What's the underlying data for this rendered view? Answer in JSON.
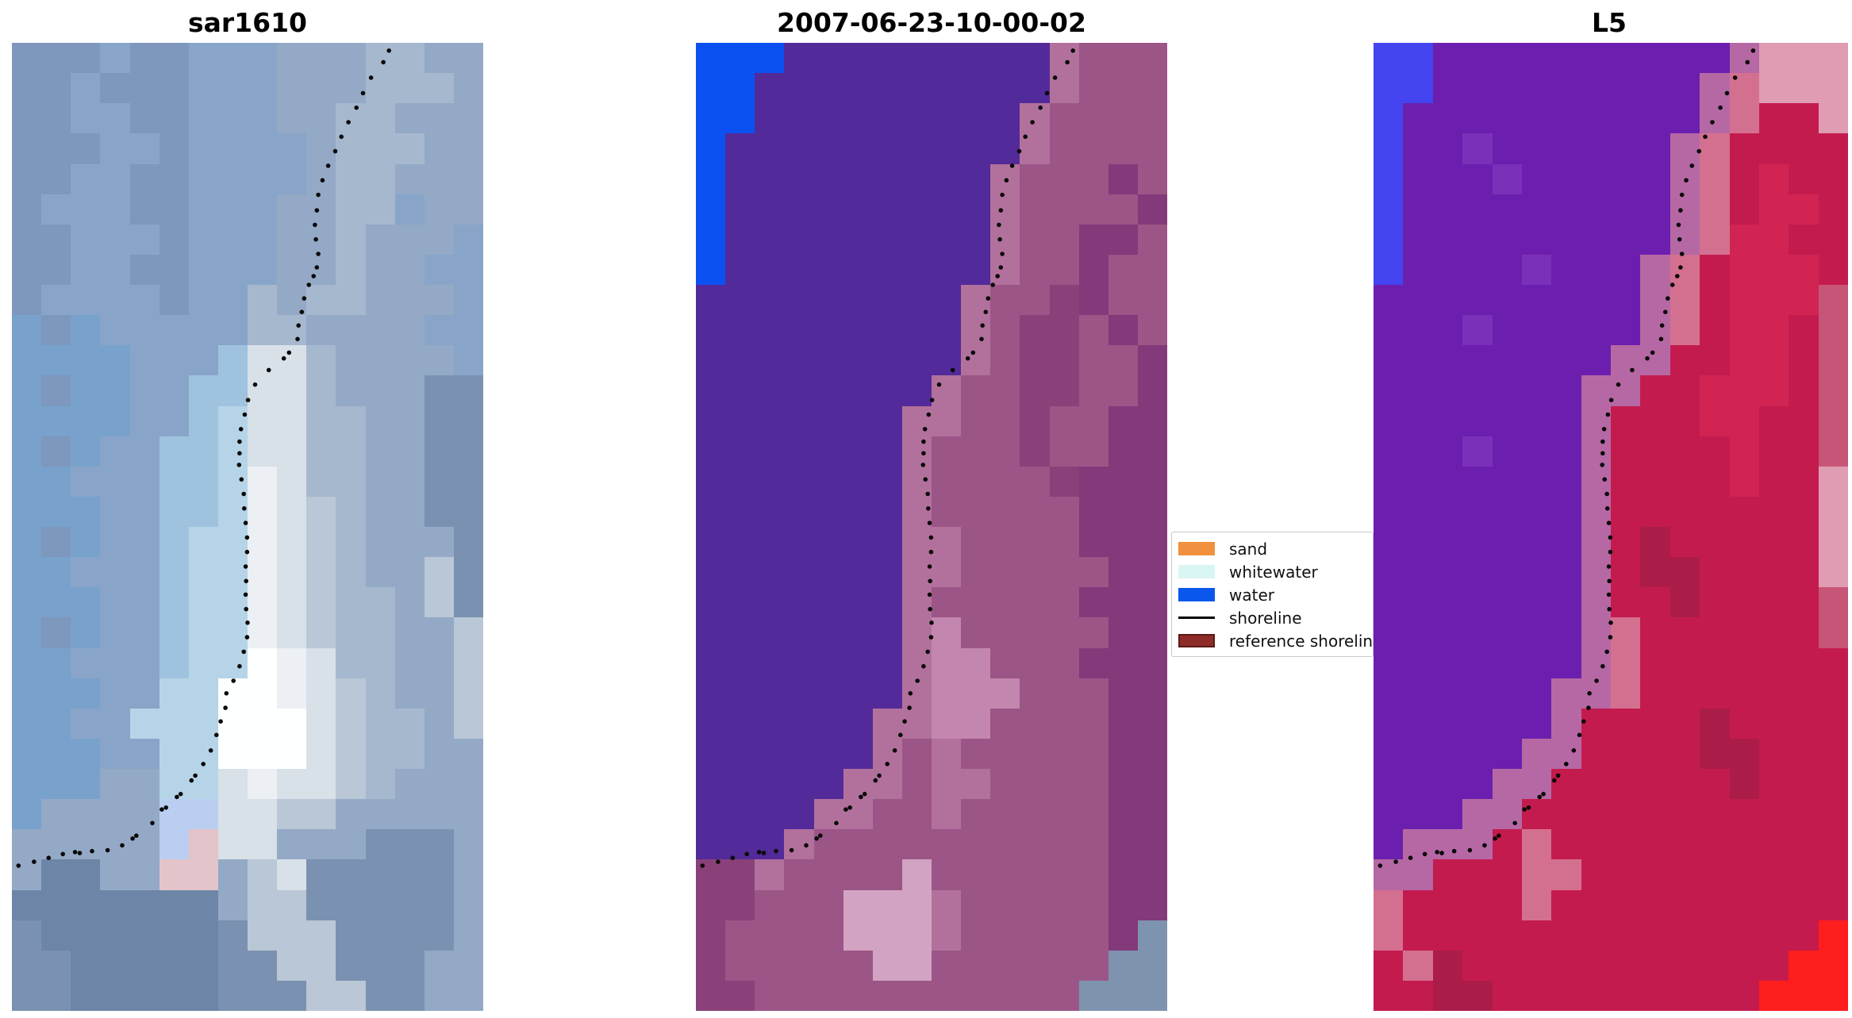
{
  "chart_data": {
    "type": "heatmap",
    "description": "Three-panel coastal satellite figure: SAR image (sar1610), classified scene (2007-06-23-10-00-02) and Landsat 5 (L5), each overlaid with the same dotted detected shoreline; legend box sits between the middle and right panels and is clipped by the right panel.",
    "panel_titles": [
      "sar1610",
      "2007-06-23-10-00-02",
      "L5"
    ],
    "panels": [
      {
        "title": "sar1610",
        "cols": 16,
        "rows": 32,
        "palette": {
          "a": "#7e97bd",
          "b": "#88a5c9",
          "p": "#78a1cb",
          "c": "#93a9c6",
          "d": "#a6b8ce",
          "e": "#b9c7d6",
          "f": "#d8e0e8",
          "g": "#ecf0f4",
          "h": "#feffff",
          "i": "#9fc3df",
          "j": "#b6d4e7",
          "k": "#6d85a6",
          "l": "#7b91b1",
          "m": "#b9cef1",
          "n": "#e3c4ca"
        },
        "grid": [
          "aaabaabbbcccddcc",
          "aabaaabbbcccdddc",
          "aabbaabbbccddccc",
          "aaabbabbbbcdddcc",
          "aabbaabbbbcddccc",
          "abbbaabbbccddbcc",
          "aabbbabbbccdcccb",
          "aabbaabbbccdccbb",
          "abbbbabbdcddcccb",
          "papbbbbbddccccbb",
          "ppppbbbiffdccccb",
          "pappbbiiffdcccll",
          "ppppbbijffddccll",
          "papbbiijffddccll",
          "ppbbbiijgfddccll",
          "pppbbiijgfedccll",
          "papbbijjgfedcccl",
          "ppbbbijjgfedccel",
          "pppbbijjgfeddcel",
          "papbbijjgfeddcce",
          "ppbbbijjhgfddcce",
          "pppbbjjhhgfedcce",
          "ppbbjjjhhhfeddce",
          "pppbbjjhhhfeddcc",
          "pppccjjfgffedccc",
          "pccccmmffeeccccc",
          "cccccmnffccclllc",
          "ckkccnnceflllllc",
          "kkkkkkkceelllllc",
          "lkkkkkkleeellllc",
          "llkkkkklleelllcc",
          "llkkkkkllleellcc"
        ]
      },
      {
        "title": "2007-06-23-10-00-02",
        "cols": 16,
        "rows": 32,
        "palette": {
          "P": "#532a99",
          "B": "#0b51f1",
          "Q": "#b2719c",
          "M": "#9c5587",
          "N": "#8a4079",
          "R": "#83397a",
          "K": "#c386ae",
          "L": "#d2a3c2",
          "S": "#7e93ae"
        },
        "grid": [
          "BBBPPPPPPPPPQMMM",
          "BBPPPPPPPPPPQMMM",
          "BBPPPPPPPPPQMMMM",
          "BPPPPPPPPPPQMMMM",
          "BPPPPPPPPPQMMMRM",
          "BPPPPPPPPPQMMMMR",
          "BPPPPPPPPPQMMRRM",
          "BPPPPPPPPPQMMRMM",
          "PPPPPPPPPQMMNRMM",
          "PPPPPPPPPQMNNMRM",
          "PPPPPPPPPQMNNMMR",
          "PPPPPPPPQMMNNMMR",
          "PPPPPPPQQMMNMMRR",
          "PPPPPPPQMMMNMMRR",
          "PPPPPPPQMMMMNRRR",
          "PPPPPPPQMMMMMRRR",
          "PPPPPPPQQMMMMRRR",
          "PPPPPPPQQMMMMMRR",
          "PPPPPPPQMMMMMRRR",
          "PPPPPPPQKMMMMMRR",
          "PPPPPPPQKKMMMRRR",
          "PPPPPPPQKKKMMMRR",
          "PPPPPPQQKKMMMMRR",
          "PPPPPPQMQMMMMMRR",
          "PPPPPQQMQQMMMMRR",
          "PPPPQQMMQMMMMMRR",
          "PPPQMMMMMMMMMMRR",
          "NNQMMMMLMMMMMMRR",
          "NNMMMLLLQMMMMMRR",
          "NMMMMLLLQMMMMMRS",
          "NMMMMMLLMMMMMMSS",
          "NNMMMMMMMMMMMSSS"
        ]
      },
      {
        "title": "L5",
        "cols": 16,
        "rows": 32,
        "palette": {
          "U": "#4444f0",
          "V": "#6c1fae",
          "T": "#7a30b8",
          "X": "#b668a4",
          "Y": "#c41b4e",
          "Z": "#d12453",
          "v": "#c75577",
          "x": "#d4708f",
          "y": "#df9cb2",
          "z": "#ff1e1e",
          "w": "#ab1c49"
        },
        "grid": [
          "UUVVVVVVVVVVXyyy",
          "UUVVVVVVVVVXxyyy",
          "UVVVVVVVVVVXxYYy",
          "UVVTVVVVVVXxYYYY",
          "UVVVTVVVVVXxYZYY",
          "UVVVVVVVVVXxYZZY",
          "UVVVVVVVVVXxZZYY",
          "UVVVVTVVVXxYZZZY",
          "VVVVVVVVVXxYZZZv",
          "VVVTVVVVVXxYZZYv",
          "VVVVVVVVXXYYZZYv",
          "VVVVVVVXXYYZZZYv",
          "VVVVVVVXYYYZZYYv",
          "VVVTVVVXYYYYZYYv",
          "VVVVVVVXYYYYZYYy",
          "VVVVVVVXYYYYYYYy",
          "VVVVVVVXYwYYYYYy",
          "VVVVVVVXYwwYYYYy",
          "VVVVVVVXYYwYYYYv",
          "VVVVVVVXxYYYYYYv",
          "VVVVVVVXxYYYYYYY",
          "VVVVVVXXxYYYYYYY",
          "VVVVVVXYYYYwYYYY",
          "VVVVVXXYYYYwwYYY",
          "VVVVXXYYYYYYwYYY",
          "VVVXXYYYYYYYYYYY",
          "VXXXYxYYYYYYYYYY",
          "XXYYYxxYYYYYYYYY",
          "xYYYYxYYYYYYYYYY",
          "xYYYYYYYYYYYYYYz",
          "YxwYYYYYYYYYYYzz",
          "YYwwYYYYYYYYYzzz"
        ]
      }
    ],
    "shoreline": {
      "color": "#0a0a0a",
      "marker": "dot",
      "points": [
        [
          0.8,
          0.008
        ],
        [
          0.788,
          0.02
        ],
        [
          0.762,
          0.036
        ],
        [
          0.745,
          0.052
        ],
        [
          0.731,
          0.067
        ],
        [
          0.714,
          0.082
        ],
        [
          0.699,
          0.097
        ],
        [
          0.686,
          0.112
        ],
        [
          0.671,
          0.127
        ],
        [
          0.659,
          0.142
        ],
        [
          0.65,
          0.157
        ],
        [
          0.647,
          0.173
        ],
        [
          0.643,
          0.188
        ],
        [
          0.645,
          0.203
        ],
        [
          0.65,
          0.218
        ],
        [
          0.647,
          0.232
        ],
        [
          0.64,
          0.241
        ],
        [
          0.63,
          0.25
        ],
        [
          0.62,
          0.264
        ],
        [
          0.615,
          0.278
        ],
        [
          0.608,
          0.292
        ],
        [
          0.606,
          0.306
        ],
        [
          0.588,
          0.32
        ],
        [
          0.577,
          0.326
        ],
        [
          0.545,
          0.338
        ],
        [
          0.516,
          0.353
        ],
        [
          0.501,
          0.369
        ],
        [
          0.494,
          0.384
        ],
        [
          0.486,
          0.399
        ],
        [
          0.483,
          0.412
        ],
        [
          0.483,
          0.424
        ],
        [
          0.482,
          0.436
        ],
        [
          0.487,
          0.451
        ],
        [
          0.492,
          0.466
        ],
        [
          0.493,
          0.481
        ],
        [
          0.496,
          0.496
        ],
        [
          0.499,
          0.511
        ],
        [
          0.499,
          0.526
        ],
        [
          0.496,
          0.541
        ],
        [
          0.497,
          0.556
        ],
        [
          0.496,
          0.57
        ],
        [
          0.497,
          0.585
        ],
        [
          0.5,
          0.599
        ],
        [
          0.499,
          0.614
        ],
        [
          0.492,
          0.629
        ],
        [
          0.483,
          0.644
        ],
        [
          0.47,
          0.659
        ],
        [
          0.455,
          0.672
        ],
        [
          0.453,
          0.687
        ],
        [
          0.443,
          0.701
        ],
        [
          0.434,
          0.715
        ],
        [
          0.422,
          0.731
        ],
        [
          0.406,
          0.745
        ],
        [
          0.389,
          0.757
        ],
        [
          0.381,
          0.762
        ],
        [
          0.358,
          0.776
        ],
        [
          0.35,
          0.779
        ],
        [
          0.327,
          0.79
        ],
        [
          0.318,
          0.792
        ],
        [
          0.298,
          0.806
        ],
        [
          0.264,
          0.819
        ],
        [
          0.256,
          0.822
        ],
        [
          0.234,
          0.829
        ],
        [
          0.203,
          0.834
        ],
        [
          0.17,
          0.835
        ],
        [
          0.144,
          0.837
        ],
        [
          0.134,
          0.836
        ],
        [
          0.108,
          0.838
        ],
        [
          0.078,
          0.842
        ],
        [
          0.047,
          0.846
        ],
        [
          0.014,
          0.85
        ]
      ]
    },
    "legend": {
      "background": "#ffffff",
      "border_color": "#c9c9c9",
      "items": [
        {
          "label": "sand",
          "type": "patch",
          "color": "#f1913f"
        },
        {
          "label": "whitewater",
          "type": "patch",
          "color": "#d9f6f5"
        },
        {
          "label": "water",
          "type": "patch",
          "color": "#0a57ee"
        },
        {
          "label": "shoreline",
          "type": "line",
          "color": "#000000"
        },
        {
          "label": "reference shoreline",
          "type": "patch",
          "color": "#8d2c28",
          "border": "#5c1a16"
        }
      ]
    }
  }
}
